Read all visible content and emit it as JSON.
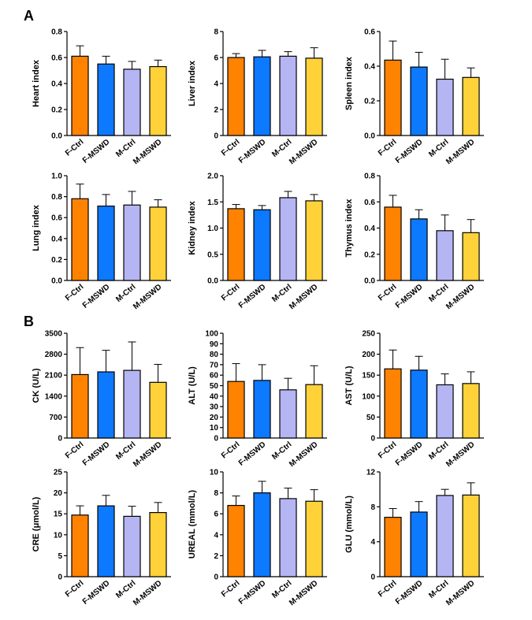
{
  "panel_labels": [
    "A",
    "B"
  ],
  "colors": {
    "F-Ctrl": "#ff8200",
    "F-MSWD": "#0d79ff",
    "M-Ctrl": "#b5b5f4",
    "M-MSWD": "#ffd23a",
    "axis": "#000000"
  },
  "chart_data": [
    {
      "type": "bar",
      "panel": "A",
      "ylabel": "Heart index",
      "categories": [
        "F-Ctrl",
        "F-MSWD",
        "M-Ctrl",
        "M-MSWD"
      ],
      "values": [
        0.61,
        0.55,
        0.51,
        0.53
      ],
      "errors": [
        0.08,
        0.06,
        0.06,
        0.05
      ],
      "ylim": [
        0,
        0.8
      ],
      "yticks": [
        "0.0",
        "0.2",
        "0.4",
        "0.6",
        "0.8"
      ]
    },
    {
      "type": "bar",
      "panel": "A",
      "ylabel": "Liver index",
      "categories": [
        "F-Ctrl",
        "F-MSWD",
        "M-Ctrl",
        "M-MSWD"
      ],
      "values": [
        6.0,
        6.05,
        6.1,
        5.95
      ],
      "errors": [
        0.3,
        0.5,
        0.35,
        0.8
      ],
      "ylim": [
        0,
        8
      ],
      "yticks": [
        "0",
        "2",
        "4",
        "6",
        "8"
      ]
    },
    {
      "type": "bar",
      "panel": "A",
      "ylabel": "Spleen index",
      "categories": [
        "F-Ctrl",
        "F-MSWD",
        "M-Ctrl",
        "M-MSWD"
      ],
      "values": [
        0.435,
        0.395,
        0.325,
        0.335
      ],
      "errors": [
        0.11,
        0.085,
        0.115,
        0.055
      ],
      "ylim": [
        0,
        0.6
      ],
      "yticks": [
        "0.0",
        "0.2",
        "0.4",
        "0.6"
      ]
    },
    {
      "type": "bar",
      "panel": "A",
      "ylabel": "Lung index",
      "categories": [
        "F-Ctrl",
        "F-MSWD",
        "M-Ctrl",
        "M-MSWD"
      ],
      "values": [
        0.78,
        0.71,
        0.72,
        0.7
      ],
      "errors": [
        0.14,
        0.11,
        0.13,
        0.07
      ],
      "ylim": [
        0,
        1.0
      ],
      "yticks": [
        "0.0",
        "0.2",
        "0.4",
        "0.6",
        "0.8",
        "1.0"
      ]
    },
    {
      "type": "bar",
      "panel": "A",
      "ylabel": "Kidney index",
      "categories": [
        "F-Ctrl",
        "F-MSWD",
        "M-Ctrl",
        "M-MSWD"
      ],
      "values": [
        1.37,
        1.35,
        1.58,
        1.52
      ],
      "errors": [
        0.08,
        0.08,
        0.12,
        0.12
      ],
      "ylim": [
        0,
        2.0
      ],
      "yticks": [
        "0.0",
        "0.5",
        "1.0",
        "1.5",
        "2.0"
      ]
    },
    {
      "type": "bar",
      "panel": "A",
      "ylabel": "Thymus index",
      "categories": [
        "F-Ctrl",
        "F-MSWD",
        "M-Ctrl",
        "M-MSWD"
      ],
      "values": [
        0.56,
        0.47,
        0.38,
        0.365
      ],
      "errors": [
        0.09,
        0.07,
        0.12,
        0.1
      ],
      "ylim": [
        0,
        0.8
      ],
      "yticks": [
        "0.0",
        "0.2",
        "0.4",
        "0.6",
        "0.8"
      ]
    },
    {
      "type": "bar",
      "panel": "B",
      "ylabel": "CK (U/L)",
      "categories": [
        "F-Ctrl",
        "F-MSWD",
        "M-Ctrl",
        "M-MSWD"
      ],
      "values": [
        2120,
        2210,
        2260,
        1860
      ],
      "errors": [
        900,
        720,
        950,
        600
      ],
      "ylim": [
        0,
        3500
      ],
      "yticks": [
        "0",
        "700",
        "1400",
        "2100",
        "2800",
        "3500"
      ]
    },
    {
      "type": "bar",
      "panel": "B",
      "ylabel": "ALT (U/L)",
      "categories": [
        "F-Ctrl",
        "F-MSWD",
        "M-Ctrl",
        "M-MSWD"
      ],
      "values": [
        54,
        55,
        46,
        51
      ],
      "errors": [
        17,
        15,
        11,
        18
      ],
      "ylim": [
        0,
        100
      ],
      "yticks": [
        "0",
        "10",
        "20",
        "30",
        "40",
        "50",
        "60",
        "70",
        "80",
        "90",
        "100"
      ]
    },
    {
      "type": "bar",
      "panel": "B",
      "ylabel": "AST (U/L)",
      "categories": [
        "F-Ctrl",
        "F-MSWD",
        "M-Ctrl",
        "M-MSWD"
      ],
      "values": [
        165,
        162,
        127,
        130
      ],
      "errors": [
        45,
        33,
        26,
        28
      ],
      "ylim": [
        0,
        250
      ],
      "yticks": [
        "0",
        "50",
        "100",
        "150",
        "200",
        "250"
      ]
    },
    {
      "type": "bar",
      "panel": "B",
      "ylabel": "CRE (μmol/L)",
      "categories": [
        "F-Ctrl",
        "F-MSWD",
        "M-Ctrl",
        "M-MSWD"
      ],
      "values": [
        14.7,
        16.9,
        14.4,
        15.3
      ],
      "errors": [
        2.2,
        2.5,
        2.4,
        2.4
      ],
      "ylim": [
        0,
        25
      ],
      "yticks": [
        "0",
        "5",
        "10",
        "15",
        "20",
        "25"
      ]
    },
    {
      "type": "bar",
      "panel": "B",
      "ylabel": "UREAL (mmol/L)",
      "categories": [
        "F-Ctrl",
        "F-MSWD",
        "M-Ctrl",
        "M-MSWD"
      ],
      "values": [
        6.8,
        8.0,
        7.45,
        7.2
      ],
      "errors": [
        0.9,
        1.1,
        1.0,
        1.1
      ],
      "ylim": [
        0,
        10
      ],
      "yticks": [
        "0",
        "2",
        "4",
        "6",
        "8",
        "10"
      ]
    },
    {
      "type": "bar",
      "panel": "B",
      "ylabel": "GLU (mmol/L)",
      "categories": [
        "F-Ctrl",
        "F-MSWD",
        "M-Ctrl",
        "M-MSWD"
      ],
      "values": [
        6.8,
        7.4,
        9.3,
        9.35
      ],
      "errors": [
        1.0,
        1.2,
        0.7,
        1.4
      ],
      "ylim": [
        0,
        12
      ],
      "yticks": [
        "0",
        "4",
        "8",
        "12"
      ]
    }
  ]
}
